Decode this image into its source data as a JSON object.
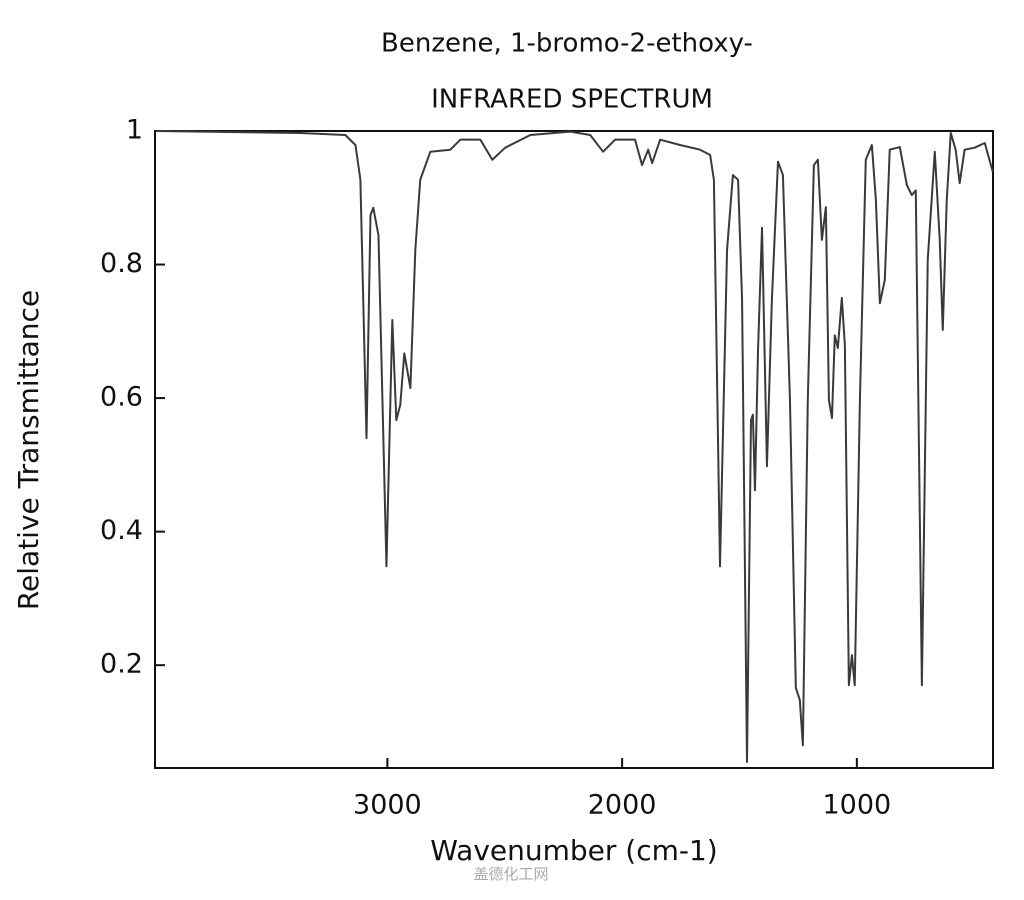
{
  "chart_data": {
    "type": "line",
    "title": "Benzene, 1-bromo-2-ethoxy-",
    "subtitle": "INFRARED SPECTRUM",
    "x_label": "Wavenumber (cm-1)",
    "y_label": "Relative Transmittance",
    "watermark": "盖德化工网",
    "xlim": [
      3990,
      420
    ],
    "reversed_x": true,
    "ylim": [
      0.046,
      1
    ],
    "xticks": [
      3000,
      2000,
      1000
    ],
    "yticks": [
      0.2,
      0.4,
      0.6,
      0.8,
      1
    ],
    "grid": false,
    "series": [
      {
        "name": "spectrum",
        "color": "#3a3a3a",
        "x": [
          3987,
          3370,
          3179,
          3136,
          3115,
          3089,
          3072,
          3060,
          3038,
          3004,
          2979,
          2962,
          2945,
          2928,
          2902,
          2881,
          2860,
          2817,
          2732,
          2689,
          2604,
          2553,
          2498,
          2391,
          2221,
          2136,
          2081,
          2030,
          1945,
          1915,
          1889,
          1872,
          1838,
          1753,
          1668,
          1625,
          1609,
          1583,
          1553,
          1528,
          1506,
          1489,
          1468,
          1451,
          1443,
          1434,
          1421,
          1404,
          1383,
          1362,
          1336,
          1315,
          1285,
          1260,
          1243,
          1230,
          1209,
          1183,
          1166,
          1149,
          1132,
          1119,
          1106,
          1094,
          1081,
          1064,
          1051,
          1034,
          1021,
          1009,
          987,
          962,
          936,
          919,
          902,
          881,
          860,
          817,
          787,
          766,
          749,
          723,
          698,
          668,
          647,
          634,
          617,
          600,
          579,
          562,
          541,
          498,
          455,
          421
        ],
        "values": [
          1.0,
          0.997,
          0.994,
          0.979,
          0.927,
          0.54,
          0.874,
          0.885,
          0.844,
          0.348,
          0.717,
          0.567,
          0.59,
          0.667,
          0.615,
          0.822,
          0.927,
          0.969,
          0.972,
          0.987,
          0.987,
          0.957,
          0.975,
          0.994,
          0.999,
          0.994,
          0.969,
          0.987,
          0.987,
          0.949,
          0.972,
          0.952,
          0.987,
          0.979,
          0.972,
          0.964,
          0.927,
          0.348,
          0.822,
          0.934,
          0.927,
          0.747,
          0.055,
          0.567,
          0.575,
          0.462,
          0.672,
          0.855,
          0.498,
          0.747,
          0.954,
          0.934,
          0.597,
          0.166,
          0.148,
          0.08,
          0.597,
          0.949,
          0.957,
          0.837,
          0.886,
          0.597,
          0.57,
          0.694,
          0.675,
          0.75,
          0.679,
          0.17,
          0.215,
          0.17,
          0.597,
          0.957,
          0.979,
          0.897,
          0.742,
          0.777,
          0.972,
          0.976,
          0.919,
          0.904,
          0.911,
          0.17,
          0.807,
          0.969,
          0.837,
          0.702,
          0.897,
          0.997,
          0.972,
          0.922,
          0.972,
          0.975,
          0.982,
          0.939
        ]
      }
    ]
  }
}
